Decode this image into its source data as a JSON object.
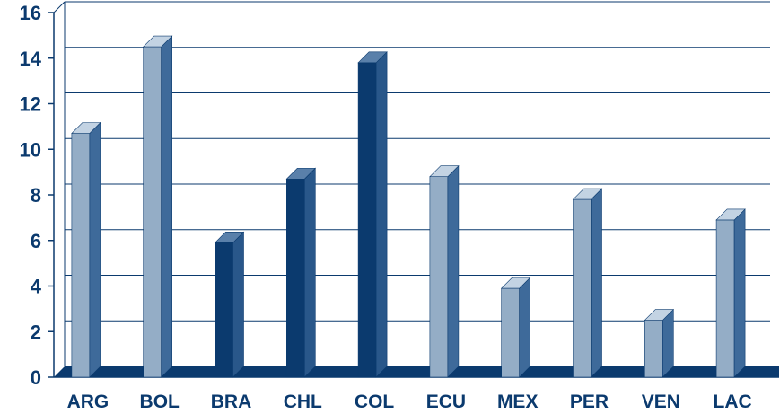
{
  "colors": {
    "grid": "#0b3a6e",
    "floor": "#0b3a6e",
    "text": "#0b3a6e",
    "light_front": "#94adc6",
    "light_side": "#3e6a9a",
    "light_top": "#c3d3e3",
    "dark_front": "#0b3a6e",
    "dark_side": "#29578a",
    "dark_top": "#5a80aa"
  },
  "chart_data": {
    "type": "bar",
    "title": "",
    "xlabel": "",
    "ylabel": "",
    "ylim": [
      0,
      16
    ],
    "yticks": [
      0,
      2,
      4,
      6,
      8,
      10,
      12,
      14,
      16
    ],
    "grid": true,
    "categories": [
      "ARG",
      "BOL",
      "BRA",
      "CHL",
      "COL",
      "ECU",
      "MEX",
      "PER",
      "VEN",
      "LAC"
    ],
    "values": [
      10.7,
      14.5,
      5.9,
      8.7,
      13.8,
      8.8,
      3.9,
      7.8,
      2.5,
      6.9
    ],
    "bar_shades": [
      "light",
      "light",
      "dark",
      "dark",
      "dark",
      "light",
      "light",
      "light",
      "light",
      "light"
    ]
  }
}
